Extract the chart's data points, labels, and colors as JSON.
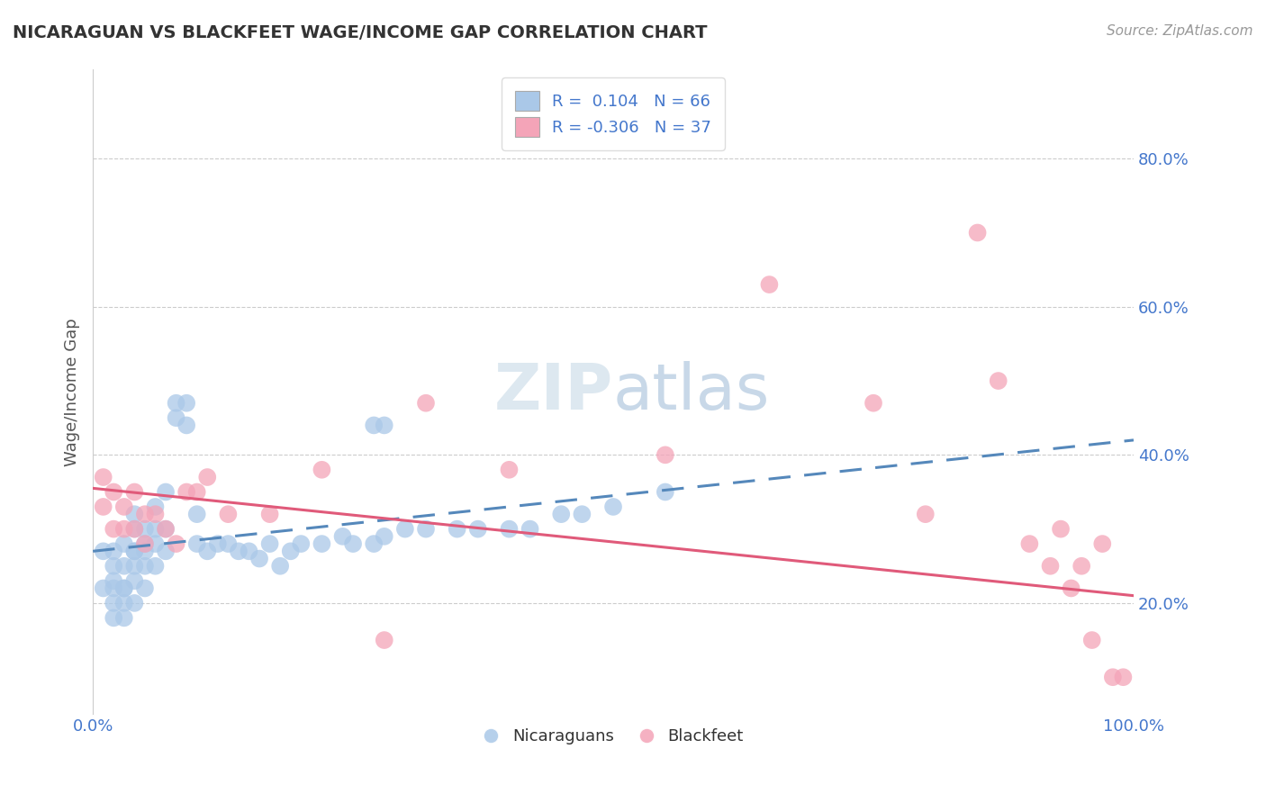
{
  "title": "NICARAGUAN VS BLACKFEET WAGE/INCOME GAP CORRELATION CHART",
  "source": "Source: ZipAtlas.com",
  "ylabel": "Wage/Income Gap",
  "legend_label1": "Nicaraguans",
  "legend_label2": "Blackfeet",
  "r1": 0.104,
  "n1": 66,
  "r2": -0.306,
  "n2": 37,
  "blue_line_color": "#5588bb",
  "pink_line_color": "#e05a7a",
  "blue_scatter_color": "#aac8e8",
  "pink_scatter_color": "#f4a4b8",
  "xlim": [
    0.0,
    1.0
  ],
  "ylim": [
    0.05,
    0.92
  ],
  "yticks": [
    0.2,
    0.4,
    0.6,
    0.8
  ],
  "ytick_labels": [
    "20.0%",
    "40.0%",
    "60.0%",
    "80.0%"
  ],
  "xtick_labels": [
    "0.0%",
    "",
    "",
    "",
    "100.0%"
  ],
  "blue_x": [
    0.01,
    0.01,
    0.02,
    0.02,
    0.02,
    0.02,
    0.02,
    0.02,
    0.03,
    0.03,
    0.03,
    0.03,
    0.03,
    0.03,
    0.04,
    0.04,
    0.04,
    0.04,
    0.04,
    0.04,
    0.04,
    0.05,
    0.05,
    0.05,
    0.05,
    0.05,
    0.06,
    0.06,
    0.06,
    0.06,
    0.07,
    0.07,
    0.07,
    0.08,
    0.08,
    0.09,
    0.09,
    0.1,
    0.1,
    0.11,
    0.12,
    0.13,
    0.14,
    0.15,
    0.16,
    0.17,
    0.18,
    0.19,
    0.2,
    0.22,
    0.24,
    0.25,
    0.27,
    0.28,
    0.3,
    0.32,
    0.35,
    0.37,
    0.4,
    0.42,
    0.45,
    0.47,
    0.5,
    0.27,
    0.28,
    0.55
  ],
  "blue_y": [
    0.27,
    0.22,
    0.25,
    0.22,
    0.23,
    0.27,
    0.2,
    0.18,
    0.28,
    0.25,
    0.22,
    0.2,
    0.18,
    0.22,
    0.3,
    0.27,
    0.25,
    0.23,
    0.2,
    0.27,
    0.32,
    0.28,
    0.25,
    0.22,
    0.27,
    0.3,
    0.28,
    0.25,
    0.3,
    0.33,
    0.3,
    0.27,
    0.35,
    0.45,
    0.47,
    0.44,
    0.47,
    0.32,
    0.28,
    0.27,
    0.28,
    0.28,
    0.27,
    0.27,
    0.26,
    0.28,
    0.25,
    0.27,
    0.28,
    0.28,
    0.29,
    0.28,
    0.28,
    0.29,
    0.3,
    0.3,
    0.3,
    0.3,
    0.3,
    0.3,
    0.32,
    0.32,
    0.33,
    0.44,
    0.44,
    0.35
  ],
  "pink_x": [
    0.01,
    0.01,
    0.02,
    0.02,
    0.03,
    0.03,
    0.04,
    0.04,
    0.05,
    0.05,
    0.06,
    0.07,
    0.08,
    0.09,
    0.1,
    0.11,
    0.13,
    0.17,
    0.22,
    0.28,
    0.32,
    0.4,
    0.55,
    0.65,
    0.75,
    0.8,
    0.85,
    0.87,
    0.9,
    0.92,
    0.93,
    0.94,
    0.95,
    0.96,
    0.97,
    0.98,
    0.99
  ],
  "pink_y": [
    0.37,
    0.33,
    0.35,
    0.3,
    0.33,
    0.3,
    0.3,
    0.35,
    0.28,
    0.32,
    0.32,
    0.3,
    0.28,
    0.35,
    0.35,
    0.37,
    0.32,
    0.32,
    0.38,
    0.15,
    0.47,
    0.38,
    0.4,
    0.63,
    0.47,
    0.32,
    0.7,
    0.5,
    0.28,
    0.25,
    0.3,
    0.22,
    0.25,
    0.15,
    0.28,
    0.1,
    0.1
  ]
}
